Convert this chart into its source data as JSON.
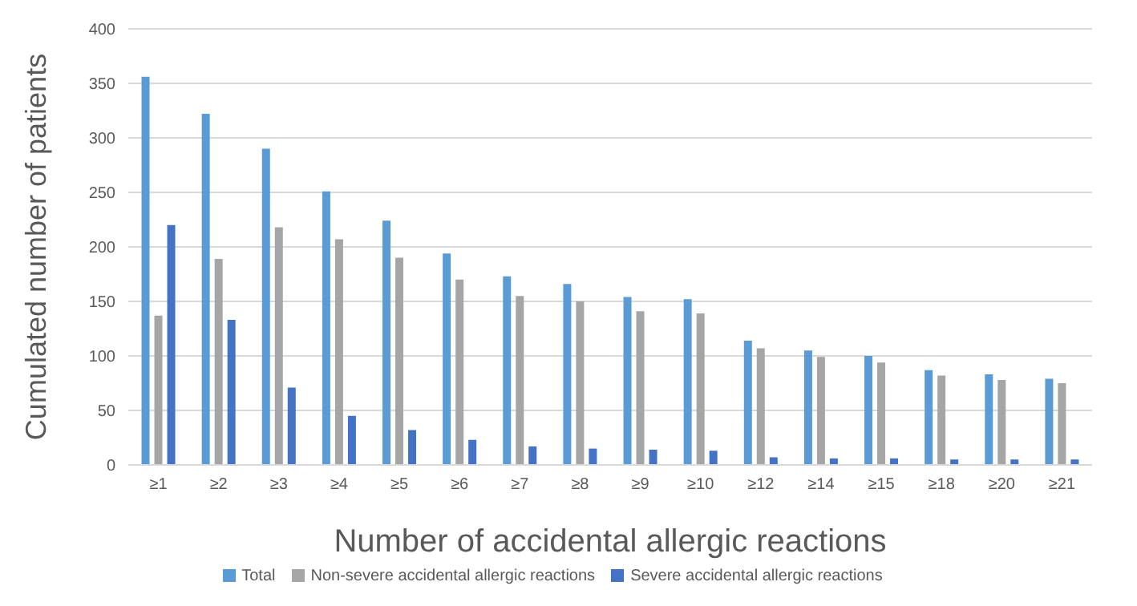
{
  "chart_data": {
    "type": "bar",
    "xlabel": "Number of accidental allergic reactions",
    "ylabel": "Cumulated number of patients",
    "categories": [
      "≥1",
      "≥2",
      "≥3",
      "≥4",
      "≥5",
      "≥6",
      "≥7",
      "≥8",
      "≥9",
      "≥10",
      "≥12",
      "≥14",
      "≥15",
      "≥18",
      "≥20",
      "≥21"
    ],
    "series": [
      {
        "name": "Total",
        "color": "#5b9bd5",
        "values": [
          356,
          322,
          290,
          251,
          224,
          194,
          173,
          166,
          154,
          152,
          114,
          105,
          100,
          87,
          83,
          79
        ]
      },
      {
        "name": "Non-severe accidental allergic reactions",
        "color": "#a5a5a5",
        "values": [
          137,
          189,
          218,
          207,
          190,
          170,
          155,
          150,
          141,
          139,
          107,
          99,
          94,
          82,
          78,
          75
        ]
      },
      {
        "name": "Severe accidental allergic reactions",
        "color": "#4472c4",
        "values": [
          220,
          133,
          71,
          45,
          32,
          23,
          17,
          15,
          14,
          13,
          7,
          6,
          6,
          5,
          5,
          5
        ]
      }
    ],
    "ylim": [
      0,
      400
    ],
    "yticks": [
      0,
      50,
      100,
      150,
      200,
      250,
      300,
      350,
      400
    ],
    "grid": "y",
    "legend": "bottom"
  }
}
